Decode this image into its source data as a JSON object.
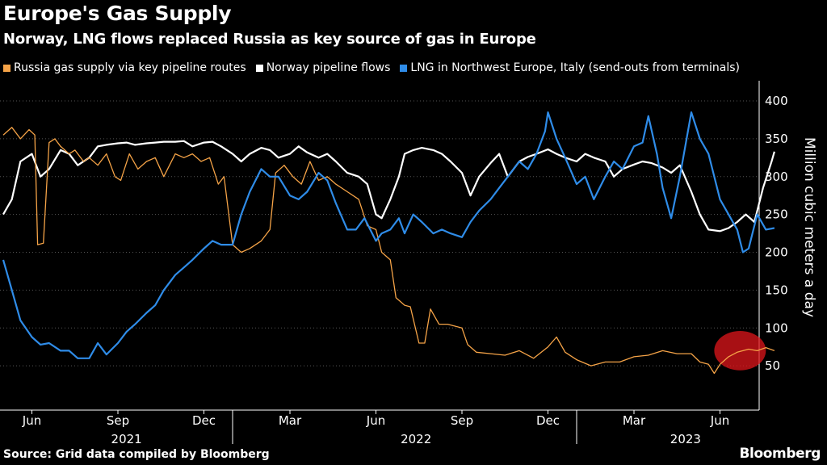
{
  "title": "Europe's Gas Supply",
  "subtitle": "Norway, LNG flows replaced Russia as key source of gas in Europe",
  "source": "Source: Grid data compiled by Bloomberg",
  "brand": "Bloomberg",
  "colors": {
    "russia": "#f5a347",
    "norway": "#ffffff",
    "lng": "#2f8ce8",
    "highlight": "#e0161b"
  },
  "chart_data": {
    "type": "line",
    "x_unit": "months since 2021-05-01",
    "x_range": [
      0,
      27.2
    ],
    "ylim": [
      0,
      410
    ],
    "yticks": [
      50,
      100,
      150,
      200,
      250,
      300,
      350,
      400
    ],
    "ylabel": "Million cubic meters a day",
    "month_ticks": [
      {
        "label": "Jun",
        "x": 1
      },
      {
        "label": "Sep",
        "x": 4
      },
      {
        "label": "Dec",
        "x": 7
      },
      {
        "label": "Mar",
        "x": 10
      },
      {
        "label": "Jun",
        "x": 13
      },
      {
        "label": "Sep",
        "x": 16
      },
      {
        "label": "Dec",
        "x": 19
      },
      {
        "label": "Mar",
        "x": 22
      },
      {
        "label": "Jun",
        "x": 25
      }
    ],
    "year_labels": [
      {
        "label": "2021",
        "x": 4.3
      },
      {
        "label": "2022",
        "x": 14.4
      },
      {
        "label": "2023",
        "x": 23.8
      }
    ],
    "year_separators": [
      8,
      20
    ],
    "highlight": {
      "x": 25.7,
      "y": 70,
      "radius_months": 0.9,
      "radius_y": 26
    },
    "series": [
      {
        "name": "Russia gas supply via key pipeline routes",
        "color_key": "russia",
        "points": [
          [
            0,
            355
          ],
          [
            0.3,
            365
          ],
          [
            0.6,
            350
          ],
          [
            0.9,
            362
          ],
          [
            1.1,
            355
          ],
          [
            1.2,
            210
          ],
          [
            1.4,
            212
          ],
          [
            1.6,
            345
          ],
          [
            1.8,
            350
          ],
          [
            2,
            340
          ],
          [
            2.3,
            330
          ],
          [
            2.5,
            335
          ],
          [
            2.8,
            320
          ],
          [
            3,
            325
          ],
          [
            3.3,
            315
          ],
          [
            3.6,
            330
          ],
          [
            3.9,
            300
          ],
          [
            4.1,
            295
          ],
          [
            4.4,
            330
          ],
          [
            4.7,
            310
          ],
          [
            5,
            320
          ],
          [
            5.3,
            325
          ],
          [
            5.6,
            300
          ],
          [
            6,
            330
          ],
          [
            6.3,
            325
          ],
          [
            6.6,
            330
          ],
          [
            6.9,
            320
          ],
          [
            7.2,
            325
          ],
          [
            7.5,
            290
          ],
          [
            7.7,
            300
          ],
          [
            8,
            210
          ],
          [
            8.3,
            200
          ],
          [
            8.6,
            205
          ],
          [
            9,
            215
          ],
          [
            9.3,
            230
          ],
          [
            9.5,
            305
          ],
          [
            9.8,
            315
          ],
          [
            10.1,
            300
          ],
          [
            10.4,
            290
          ],
          [
            10.7,
            320
          ],
          [
            11,
            295
          ],
          [
            11.3,
            300
          ],
          [
            11.6,
            290
          ],
          [
            12,
            280
          ],
          [
            12.4,
            270
          ],
          [
            12.7,
            235
          ],
          [
            13,
            230
          ],
          [
            13.2,
            200
          ],
          [
            13.5,
            190
          ],
          [
            13.7,
            140
          ],
          [
            14,
            130
          ],
          [
            14.2,
            128
          ],
          [
            14.5,
            80
          ],
          [
            14.7,
            80
          ],
          [
            14.9,
            125
          ],
          [
            15.2,
            105
          ],
          [
            15.5,
            105
          ],
          [
            16,
            100
          ],
          [
            16.2,
            78
          ],
          [
            16.5,
            68
          ],
          [
            17,
            66
          ],
          [
            17.5,
            64
          ],
          [
            18,
            70
          ],
          [
            18.5,
            60
          ],
          [
            19,
            75
          ],
          [
            19.3,
            88
          ],
          [
            19.6,
            68
          ],
          [
            20,
            58
          ],
          [
            20.5,
            50
          ],
          [
            21,
            55
          ],
          [
            21.5,
            55
          ],
          [
            22,
            62
          ],
          [
            22.5,
            64
          ],
          [
            23,
            70
          ],
          [
            23.5,
            66
          ],
          [
            24,
            66
          ],
          [
            24.3,
            55
          ],
          [
            24.6,
            52
          ],
          [
            24.8,
            40
          ],
          [
            25,
            52
          ],
          [
            25.3,
            62
          ],
          [
            25.6,
            68
          ],
          [
            26,
            72
          ],
          [
            26.3,
            70
          ],
          [
            26.6,
            74
          ],
          [
            26.9,
            70
          ]
        ]
      },
      {
        "name": "Norway pipeline flows",
        "color_key": "norway",
        "points": [
          [
            0,
            250
          ],
          [
            0.3,
            270
          ],
          [
            0.6,
            320
          ],
          [
            1,
            330
          ],
          [
            1.3,
            300
          ],
          [
            1.6,
            310
          ],
          [
            2,
            335
          ],
          [
            2.3,
            330
          ],
          [
            2.6,
            315
          ],
          [
            3,
            325
          ],
          [
            3.3,
            340
          ],
          [
            3.6,
            342
          ],
          [
            4,
            344
          ],
          [
            4.3,
            345
          ],
          [
            4.6,
            342
          ],
          [
            5,
            344
          ],
          [
            5.3,
            345
          ],
          [
            5.6,
            346
          ],
          [
            6,
            346
          ],
          [
            6.3,
            347
          ],
          [
            6.6,
            340
          ],
          [
            7,
            345
          ],
          [
            7.3,
            346
          ],
          [
            7.6,
            340
          ],
          [
            8,
            330
          ],
          [
            8.3,
            320
          ],
          [
            8.6,
            330
          ],
          [
            9,
            338
          ],
          [
            9.3,
            335
          ],
          [
            9.6,
            325
          ],
          [
            10,
            330
          ],
          [
            10.3,
            340
          ],
          [
            10.6,
            332
          ],
          [
            11,
            325
          ],
          [
            11.3,
            330
          ],
          [
            11.6,
            320
          ],
          [
            12,
            305
          ],
          [
            12.4,
            300
          ],
          [
            12.7,
            290
          ],
          [
            13,
            250
          ],
          [
            13.2,
            245
          ],
          [
            13.5,
            270
          ],
          [
            13.8,
            300
          ],
          [
            14,
            330
          ],
          [
            14.3,
            335
          ],
          [
            14.6,
            338
          ],
          [
            15,
            335
          ],
          [
            15.3,
            330
          ],
          [
            15.6,
            320
          ],
          [
            16,
            305
          ],
          [
            16.3,
            275
          ],
          [
            16.6,
            300
          ],
          [
            17,
            318
          ],
          [
            17.3,
            330
          ],
          [
            17.6,
            300
          ],
          [
            18,
            320
          ],
          [
            18.3,
            326
          ],
          [
            18.6,
            330
          ],
          [
            19,
            336
          ],
          [
            19.3,
            330
          ],
          [
            19.6,
            325
          ],
          [
            20,
            320
          ],
          [
            20.3,
            330
          ],
          [
            20.6,
            325
          ],
          [
            21,
            320
          ],
          [
            21.3,
            300
          ],
          [
            21.6,
            310
          ],
          [
            22,
            316
          ],
          [
            22.3,
            320
          ],
          [
            22.6,
            318
          ],
          [
            23,
            312
          ],
          [
            23.3,
            305
          ],
          [
            23.6,
            315
          ],
          [
            24,
            280
          ],
          [
            24.3,
            250
          ],
          [
            24.6,
            230
          ],
          [
            25,
            228
          ],
          [
            25.3,
            232
          ],
          [
            25.6,
            240
          ],
          [
            25.9,
            250
          ],
          [
            26.2,
            240
          ],
          [
            26.5,
            285
          ],
          [
            26.8,
            320
          ],
          [
            26.9,
            333
          ]
        ]
      },
      {
        "name": "LNG in Northwest Europe, Italy (send-outs from terminals)",
        "color_key": "lng",
        "points": [
          [
            0,
            190
          ],
          [
            0.3,
            150
          ],
          [
            0.6,
            110
          ],
          [
            1,
            88
          ],
          [
            1.3,
            78
          ],
          [
            1.6,
            80
          ],
          [
            2,
            70
          ],
          [
            2.3,
            70
          ],
          [
            2.6,
            60
          ],
          [
            3,
            60
          ],
          [
            3.3,
            80
          ],
          [
            3.6,
            65
          ],
          [
            4,
            80
          ],
          [
            4.3,
            95
          ],
          [
            4.6,
            105
          ],
          [
            5,
            120
          ],
          [
            5.3,
            130
          ],
          [
            5.6,
            150
          ],
          [
            6,
            170
          ],
          [
            6.3,
            180
          ],
          [
            6.6,
            190
          ],
          [
            7,
            205
          ],
          [
            7.3,
            215
          ],
          [
            7.6,
            210
          ],
          [
            8,
            210
          ],
          [
            8.3,
            250
          ],
          [
            8.6,
            280
          ],
          [
            9,
            310
          ],
          [
            9.3,
            300
          ],
          [
            9.6,
            300
          ],
          [
            10,
            275
          ],
          [
            10.3,
            270
          ],
          [
            10.6,
            280
          ],
          [
            11,
            305
          ],
          [
            11.3,
            295
          ],
          [
            11.6,
            265
          ],
          [
            12,
            230
          ],
          [
            12.3,
            230
          ],
          [
            12.6,
            245
          ],
          [
            13,
            215
          ],
          [
            13.2,
            225
          ],
          [
            13.5,
            230
          ],
          [
            13.8,
            245
          ],
          [
            14,
            225
          ],
          [
            14.3,
            250
          ],
          [
            14.6,
            240
          ],
          [
            15,
            225
          ],
          [
            15.3,
            230
          ],
          [
            15.6,
            225
          ],
          [
            16,
            220
          ],
          [
            16.3,
            240
          ],
          [
            16.6,
            255
          ],
          [
            17,
            270
          ],
          [
            17.3,
            285
          ],
          [
            17.6,
            300
          ],
          [
            18,
            320
          ],
          [
            18.3,
            310
          ],
          [
            18.6,
            330
          ],
          [
            18.9,
            360
          ],
          [
            19,
            385
          ],
          [
            19.3,
            350
          ],
          [
            19.6,
            325
          ],
          [
            20,
            290
          ],
          [
            20.3,
            300
          ],
          [
            20.6,
            270
          ],
          [
            21,
            300
          ],
          [
            21.3,
            320
          ],
          [
            21.6,
            310
          ],
          [
            22,
            340
          ],
          [
            22.3,
            345
          ],
          [
            22.5,
            380
          ],
          [
            22.8,
            330
          ],
          [
            23,
            285
          ],
          [
            23.3,
            245
          ],
          [
            23.6,
            300
          ],
          [
            24,
            385
          ],
          [
            24.3,
            350
          ],
          [
            24.6,
            330
          ],
          [
            25,
            270
          ],
          [
            25.3,
            250
          ],
          [
            25.6,
            230
          ],
          [
            25.8,
            200
          ],
          [
            26,
            205
          ],
          [
            26.3,
            250
          ],
          [
            26.6,
            230
          ],
          [
            26.9,
            232
          ]
        ]
      }
    ]
  }
}
